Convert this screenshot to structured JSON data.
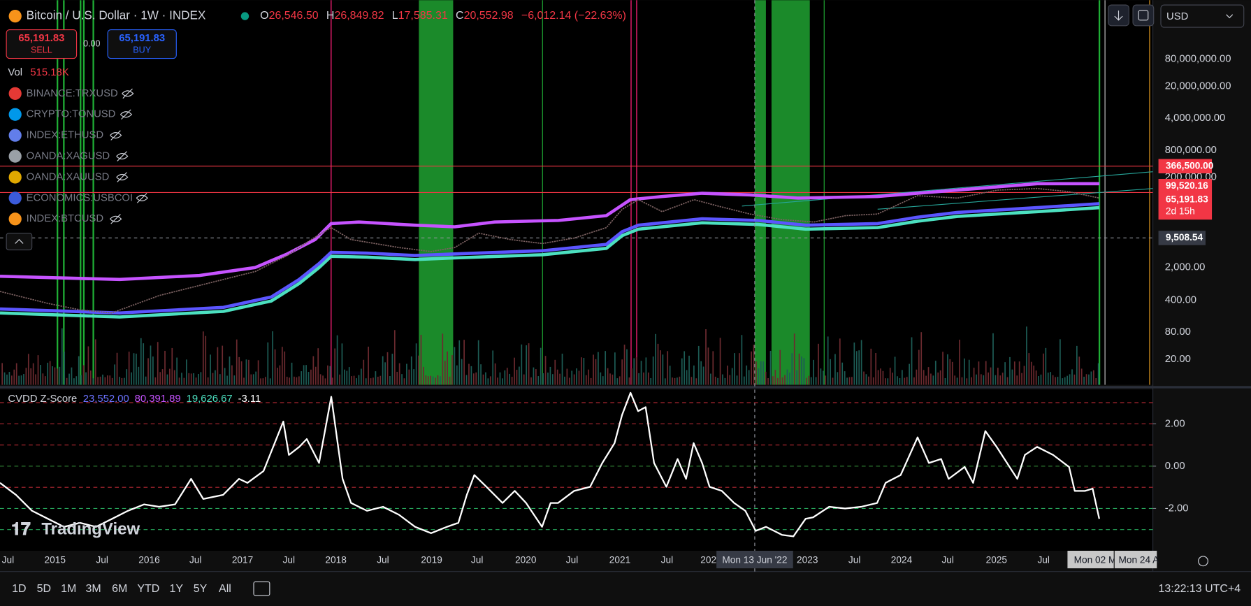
{
  "header": {
    "title": "Bitcoin / U.S. Dollar · 1W · INDEX",
    "ohlc": {
      "o_label": "O",
      "o": "26,546.50",
      "h_label": "H",
      "h": "26,849.82",
      "l_label": "L",
      "l": "17,585.31",
      "c_label": "C",
      "c": "20,552.98",
      "change": "−6,012.14 (−22.63%)"
    }
  },
  "trade": {
    "sell_price": "65,191.83",
    "sell": "SELL",
    "spread": "0.00",
    "buy_price": "65,191.83",
    "buy": "BUY"
  },
  "volume": {
    "label": "Vol",
    "value": "515.18K"
  },
  "symbols": [
    {
      "name": "BINANCE:TRXUSD",
      "color": "#e53935"
    },
    {
      "name": "CRYPTO:TONUSD",
      "color": "#0098ea"
    },
    {
      "name": "INDEX:ETHUSD",
      "color": "#627eea"
    },
    {
      "name": "OANDA:XAGUSD",
      "color": "#9aa0a6"
    },
    {
      "name": "OANDA:XAUUSD",
      "color": "#e0a800"
    },
    {
      "name": "ECONOMICS:USBCOI",
      "color": "#3b5bdb"
    },
    {
      "name": "INDEX:BTCUSD",
      "color": "#f7931a"
    }
  ],
  "currency": "USD",
  "price_axis": [
    "80,000,000.00",
    "20,000,000.00",
    "4,000,000.00",
    "800,000.00",
    "200,000.00",
    "2,000.00",
    "400.00",
    "80.00",
    "20.00"
  ],
  "price_tags": [
    {
      "label": "366,500.00",
      "color": "#f23645"
    },
    {
      "label": "99,520.16",
      "color": "#f23645"
    },
    {
      "label": "65,191.83",
      "sub": "2d 15h",
      "color": "#f23645"
    },
    {
      "label": "9,508.54",
      "color": "#363a45"
    }
  ],
  "indicator_values": [
    {
      "text": "23,552.00",
      "color": "#6b72ff"
    },
    {
      "text": "80,391.89",
      "color": "#c653ff"
    },
    {
      "text": "19,626.67",
      "color": "#4ce0c0"
    },
    {
      "text": "-3.11",
      "color": "#ffffff"
    }
  ],
  "chart_data": {
    "type": "line",
    "title": "CVDD Z-Score",
    "color": "#ffffff",
    "x": [
      2014.42,
      2014.59,
      2014.76,
      2014.93,
      2015.1,
      2015.27,
      2015.44,
      2015.61,
      2015.78,
      2015.95,
      2016.11,
      2016.28,
      2016.45,
      2016.58,
      2016.79,
      2016.96,
      2017.05,
      2017.22,
      2017.43,
      2017.49,
      2017.6,
      2017.68,
      2017.81,
      2017.94,
      2018.06,
      2018.15,
      2018.32,
      2018.49,
      2018.66,
      2018.83,
      2019.0,
      2019.17,
      2019.29,
      2019.38,
      2019.46,
      2019.59,
      2019.76,
      2019.89,
      2020.01,
      2020.18,
      2020.27,
      2020.35,
      2020.52,
      2020.69,
      2020.82,
      2020.95,
      2021.03,
      2021.12,
      2021.2,
      2021.28,
      2021.37,
      2021.5,
      2021.62,
      2021.71,
      2021.79,
      2021.88,
      2021.96,
      2022.09,
      2022.22,
      2022.34,
      2022.45,
      2022.56,
      2022.73,
      2022.85,
      2022.98,
      2023.06,
      2023.23,
      2023.4,
      2023.57,
      2023.74,
      2023.83,
      2023.99,
      2024.17,
      2024.29,
      2024.42,
      2024.5,
      2024.67,
      2024.76,
      2024.89,
      2025.01,
      2025.12,
      2025.23,
      2025.31,
      2025.44,
      2025.61,
      2025.78,
      2025.84,
      2025.95,
      2026.03,
      2026.1
    ],
    "values": [
      -0.79,
      -1.36,
      -2.11,
      -2.49,
      -2.87,
      -2.68,
      -2.87,
      -2.49,
      -2.11,
      -1.81,
      -1.92,
      -1.81,
      -0.6,
      -1.55,
      -1.36,
      -0.6,
      -0.79,
      -0.23,
      2.11,
      0.53,
      0.91,
      1.28,
      0.15,
      3.28,
      -0.6,
      -1.74,
      -2.11,
      -1.92,
      -2.3,
      -2.87,
      -3.17,
      -2.87,
      -2.68,
      -1.36,
      -0.42,
      -0.98,
      -1.74,
      -1.17,
      -1.74,
      -2.87,
      -1.74,
      -1.74,
      -1.17,
      -0.98,
      0.15,
      1.09,
      2.42,
      3.47,
      2.6,
      2.79,
      0.15,
      -0.98,
      0.34,
      -0.6,
      1.09,
      0.15,
      -0.98,
      -1.17,
      -1.74,
      -2.11,
      -3.06,
      -2.87,
      -3.25,
      -3.32,
      -2.49,
      -2.42,
      -1.92,
      -2.0,
      -1.92,
      -1.74,
      -0.79,
      -0.42,
      1.36,
      0.15,
      0.34,
      -0.6,
      -0.04,
      -0.79,
      1.66,
      0.91,
      0.15,
      -0.6,
      0.53,
      0.91,
      0.53,
      -0.04,
      -1.17,
      -1.17,
      -1.06,
      -2.49
    ],
    "xlim": [
      2014.42,
      2026.67
    ],
    "ylim": [
      -4,
      3.62
    ],
    "yticks": [
      {
        "value": 2,
        "label": "2.00"
      },
      {
        "value": 0,
        "label": "0.00"
      },
      {
        "value": -2,
        "label": "-2.00"
      }
    ],
    "levels": [
      3,
      2,
      1,
      0,
      -1,
      -2,
      -3
    ],
    "level_colors": [
      "#b22833",
      "#b22833",
      "#b22833",
      "#2e7d32",
      "#b22833",
      "#26a65b",
      "#26a65b"
    ]
  },
  "time_axis": [
    "Jul",
    "2015",
    "Jul",
    "2016",
    "Jul",
    "2017",
    "Jul",
    "2018",
    "Jul",
    "2019",
    "Jul",
    "2020",
    "Jul",
    "2021",
    "Jul",
    "202",
    "2023",
    "Jul",
    "2024",
    "Jul",
    "2025",
    "Jul"
  ],
  "crosshair_date": "Mon 13 Jun '22",
  "end_labels": [
    "Mon 02 M",
    "Mon 24 A"
  ],
  "watermark": "TradingView",
  "toolbar": {
    "ranges": [
      "1D",
      "5D",
      "1M",
      "3M",
      "6M",
      "YTD",
      "1Y",
      "5Y",
      "All"
    ],
    "clock": "13:22:13 UTC+4"
  }
}
